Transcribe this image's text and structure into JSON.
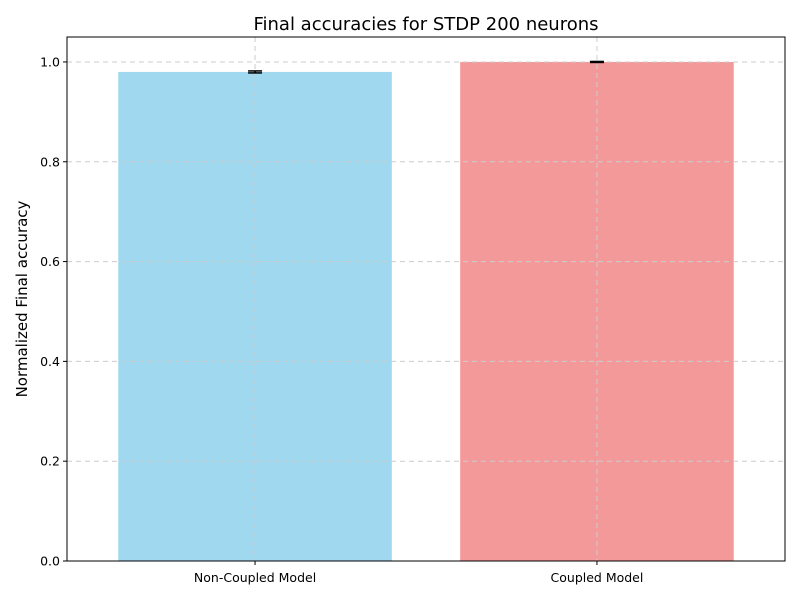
{
  "chart_data": {
    "type": "bar",
    "title": "Final accuracies for STDP 200 neurons",
    "xlabel": "",
    "ylabel": "Normalized Final accuracy",
    "categories": [
      "Non-Coupled Model",
      "Coupled Model"
    ],
    "values": [
      0.98,
      1.0
    ],
    "errors": [
      0.002,
      0.001
    ],
    "colors": [
      "#87CEEB",
      "#F08080"
    ],
    "bar_opacity": 0.8,
    "ylim": [
      0,
      1.05
    ],
    "yticks": [
      0.0,
      0.2,
      0.4,
      0.6,
      0.8,
      1.0
    ],
    "ytick_labels": [
      "0.0",
      "0.2",
      "0.4",
      "0.6",
      "0.8",
      "1.0"
    ],
    "grid": true
  }
}
